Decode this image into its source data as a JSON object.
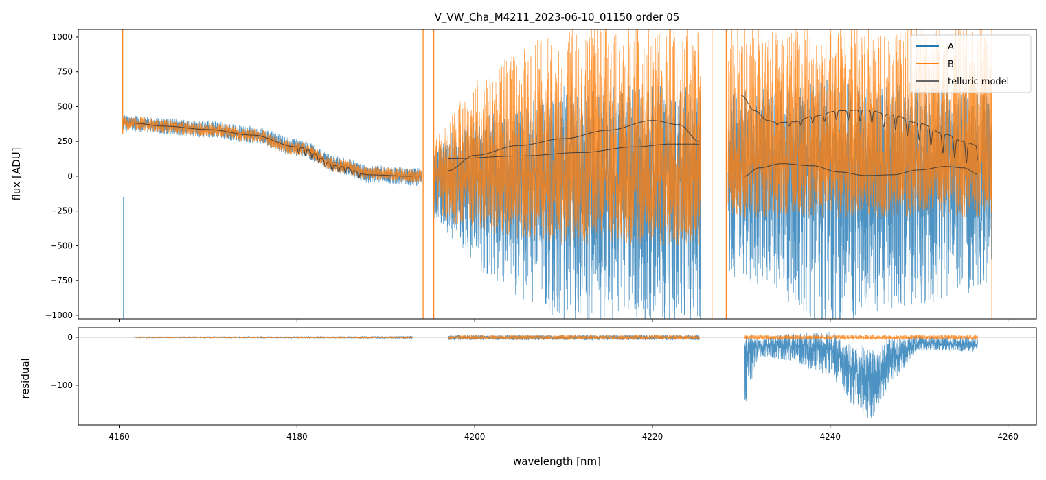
{
  "chart_data": [
    {
      "type": "line",
      "title": "V_VW_Cha_M4211_2023-06-10_01150  order 05",
      "xlabel": "",
      "ylabel": "flux [ADU]",
      "xlim": [
        4155.4,
        4263.2
      ],
      "ylim": [
        -1025,
        1054
      ],
      "xticks": [
        4160,
        4180,
        4200,
        4220,
        4240,
        4260
      ],
      "yticks": [
        1000,
        750,
        500,
        250,
        0,
        -250,
        -500,
        -750,
        -1000
      ],
      "ytick_labels": [
        "1000",
        "750",
        "500",
        "250",
        "0",
        "−250",
        "−500",
        "−750",
        "−1000"
      ],
      "legend": {
        "position": "top-right",
        "entries": [
          "A",
          "B",
          "telluric model"
        ]
      },
      "series": [
        {
          "name": "A",
          "color": "#1f77b4",
          "segments": [
            {
              "range": [
                4160.4,
                4194.1
              ],
              "baseline": [
                [
                  4160.4,
                  380
                ],
                [
                  4170,
                  340
                ],
                [
                  4175,
                  300
                ],
                [
                  4180,
                  210
                ],
                [
                  4185,
                  80
                ],
                [
                  4188,
                  20
                ],
                [
                  4194.1,
                  0
                ]
              ],
              "noise": [
                [
                  4160.4,
                  60,
                  60
                ],
                [
                  4194.1,
                  60,
                  70
                ]
              ]
            },
            {
              "range": [
                4195.4,
                4225.4
              ],
              "baseline": [
                [
                  4195.4,
                  0
                ],
                [
                  4225.4,
                  0
                ]
              ],
              "noise": [
                [
                  4195.4,
                  250,
                  300
                ],
                [
                  4200,
                  400,
                  650
                ],
                [
                  4210,
                  650,
                  1100
                ],
                [
                  4225.4,
                  650,
                  1100
                ]
              ]
            },
            {
              "range": [
                4228.5,
                4258.2
              ],
              "baseline": [
                [
                  4228.5,
                  100
                ],
                [
                  4258.2,
                  100
                ]
              ],
              "noise": [
                [
                  4228.5,
                  500,
                  800
                ],
                [
                  4240,
                  600,
                  1200
                ],
                [
                  4258.2,
                  500,
                  900
                ]
              ]
            }
          ]
        },
        {
          "name": "B",
          "color": "#ff7f0e",
          "segments": [
            {
              "range": [
                4160.4,
                4194.1
              ],
              "baseline": [
                [
                  4160.4,
                  380
                ],
                [
                  4170,
                  335
                ],
                [
                  4175,
                  295
                ],
                [
                  4180,
                  200
                ],
                [
                  4185,
                  75
                ],
                [
                  4188,
                  20
                ],
                [
                  4194.1,
                  0
                ]
              ],
              "noise": [
                [
                  4160.4,
                  50,
                  50
                ],
                [
                  4194.1,
                  50,
                  50
                ]
              ]
            },
            {
              "range": [
                4195.4,
                4225.4
              ],
              "baseline": [
                [
                  4195.4,
                  0
                ],
                [
                  4225.4,
                  0
                ]
              ],
              "noise": [
                [
                  4195.4,
                  250,
                  300
                ],
                [
                  4200,
                  700,
                  400
                ],
                [
                  4210,
                  1100,
                  500
                ],
                [
                  4225.4,
                  1100,
                  500
                ]
              ]
            },
            {
              "range": [
                4228.5,
                4258.2
              ],
              "baseline": [
                [
                  4228.5,
                  100
                ],
                [
                  4258.2,
                  100
                ]
              ],
              "noise": [
                [
                  4228.5,
                  1000,
                  400
                ],
                [
                  4258.2,
                  1000,
                  400
                ]
              ]
            }
          ]
        },
        {
          "name": "telluric model",
          "color": "#333333",
          "curves": [
            {
              "points": [
                [
                  4161.7,
                  380
                ],
                [
                  4165,
                  360
                ],
                [
                  4170,
                  335
                ],
                [
                  4175,
                  295
                ],
                [
                  4180,
                  210
                ],
                [
                  4185,
                  70
                ],
                [
                  4188,
                  10
                ],
                [
                  4193,
                  0
                ]
              ],
              "dips": {
                "start": 4180.2,
                "spacing": 0.75,
                "count": 10,
                "depth": [
                  50,
                  40
                ],
                "width": 0.12
              }
            },
            {
              "points": [
                [
                  4197,
                  40
                ],
                [
                  4200,
                  150
                ],
                [
                  4205,
                  220
                ],
                [
                  4210,
                  270
                ],
                [
                  4215,
                  330
                ],
                [
                  4220,
                  400
                ],
                [
                  4223,
                  370
                ],
                [
                  4225.3,
                  250
                ]
              ]
            },
            {
              "points": [
                [
                  4197,
                  125
                ],
                [
                  4205,
                  145
                ],
                [
                  4212,
                  170
                ],
                [
                  4218,
                  210
                ],
                [
                  4222,
                  230
                ],
                [
                  4225.3,
                  230
                ]
              ]
            },
            {
              "points": [
                [
                  4230,
                  580
                ],
                [
                  4231.5,
                  470
                ],
                [
                  4233,
                  400
                ],
                [
                  4234,
                  385
                ],
                [
                  4236,
                  390
                ],
                [
                  4238,
                  430
                ],
                [
                  4241,
                  470
                ],
                [
                  4244,
                  475
                ],
                [
                  4247,
                  440
                ],
                [
                  4250,
                  380
                ],
                [
                  4253,
                  300
                ],
                [
                  4255,
                  250
                ],
                [
                  4256.6,
                  220
                ]
              ],
              "dips": {
                "start": 4234.05,
                "spacing": 1.33,
                "count": 18,
                "depth": [
                  20,
                  160
                ],
                "width": 0.13
              }
            },
            {
              "points": [
                [
                  4230.3,
                  0
                ],
                [
                  4232,
                  60
                ],
                [
                  4234.5,
                  90
                ],
                [
                  4238,
                  75
                ],
                [
                  4241,
                  30
                ],
                [
                  4244,
                  5
                ],
                [
                  4247,
                  10
                ],
                [
                  4250,
                  45
                ],
                [
                  4253,
                  70
                ],
                [
                  4255,
                  60
                ],
                [
                  4256.6,
                  15
                ]
              ]
            }
          ]
        }
      ],
      "spikes": [
        {
          "series": "B",
          "x": 4160.4,
          "to": "top"
        },
        {
          "series": "A",
          "x": 4160.5,
          "to": "bottom"
        },
        {
          "series": "B",
          "x": 4194.2,
          "to": "both"
        },
        {
          "series": "B",
          "x": 4195.4,
          "to": "both"
        },
        {
          "series": "B",
          "x": 4226.7,
          "to": "both"
        },
        {
          "series": "B",
          "x": 4228.3,
          "to": "both"
        },
        {
          "series": "B",
          "x": 4258.2,
          "to": "both"
        }
      ]
    },
    {
      "type": "line",
      "xlabel": "wavelength [nm]",
      "ylabel": "residual",
      "xlim": [
        4155.4,
        4263.2
      ],
      "ylim": [
        -183,
        20
      ],
      "xticks": [
        4160,
        4180,
        4200,
        4220,
        4240,
        4260
      ],
      "xtick_labels": [
        "4160",
        "4180",
        "4200",
        "4220",
        "4240",
        "4260"
      ],
      "yticks": [
        0,
        -100
      ],
      "ytick_labels": [
        "0",
        "−100"
      ],
      "zero_line": true,
      "series": [
        {
          "name": "A",
          "color": "#1f77b4",
          "segments": [
            {
              "range": [
                4161.7,
                4193
              ],
              "baseline": [
                [
                  4161.7,
                  0
                ],
                [
                  4193,
                  0
                ]
              ],
              "noise": [
                [
                  4161.7,
                  1,
                  1
                ],
                [
                  4185,
                  2,
                  2
                ],
                [
                  4193,
                  3,
                  3
                ]
              ]
            },
            {
              "range": [
                4197,
                4225.3
              ],
              "baseline": [
                [
                  4197,
                  0
                ],
                [
                  4225.3,
                  0
                ]
              ],
              "noise": [
                [
                  4197,
                  5,
                  6
                ],
                [
                  4225.3,
                  5,
                  6
                ]
              ]
            },
            {
              "range": [
                4230.3,
                4256.6
              ],
              "baseline": [
                [
                  4230.3,
                  -40
                ],
                [
                  4231,
                  -20
                ],
                [
                  4235,
                  -15
                ],
                [
                  4240,
                  -25
                ],
                [
                  4242,
                  -60
                ],
                [
                  4245,
                  -80
                ],
                [
                  4247,
                  -40
                ],
                [
                  4250,
                  -12
                ],
                [
                  4256.6,
                  -15
                ]
              ],
              "noise": [
                [
                  4230.3,
                  40,
                  120
                ],
                [
                  4232,
                  15,
                  20
                ],
                [
                  4241,
                  40,
                  60
                ],
                [
                  4244,
                  60,
                  100
                ],
                [
                  4247,
                  40,
                  50
                ],
                [
                  4250,
                  15,
                  15
                ],
                [
                  4256.6,
                  15,
                  15
                ]
              ]
            }
          ]
        },
        {
          "name": "B",
          "color": "#ff7f0e",
          "segments": [
            {
              "range": [
                4161.7,
                4193
              ],
              "baseline": [
                [
                  4161.7,
                  0
                ],
                [
                  4193,
                  0
                ]
              ],
              "noise": [
                [
                  4161.7,
                  1,
                  1
                ],
                [
                  4193,
                  2,
                  2
                ]
              ]
            },
            {
              "range": [
                4197,
                4225.3
              ],
              "baseline": [
                [
                  4197,
                  0
                ],
                [
                  4225.3,
                  0
                ]
              ],
              "noise": [
                [
                  4197,
                  5,
                  5
                ],
                [
                  4225.3,
                  5,
                  5
                ]
              ]
            },
            {
              "range": [
                4230.3,
                4256.6
              ],
              "baseline": [
                [
                  4230.3,
                  0
                ],
                [
                  4256.6,
                  0
                ]
              ],
              "noise": [
                [
                  4230.3,
                  5,
                  5
                ],
                [
                  4256.6,
                  5,
                  5
                ]
              ]
            }
          ]
        }
      ]
    }
  ]
}
